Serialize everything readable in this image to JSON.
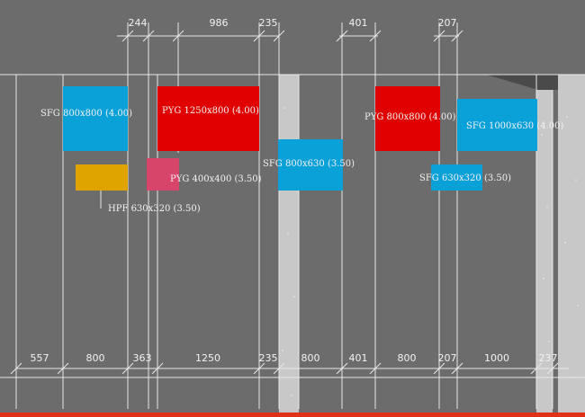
{
  "colors": {
    "background": "#6c6c6c",
    "lines": "#e8e8e8",
    "blue": "#0aa0d8",
    "red": "#e00000",
    "orange": "#e0a400",
    "pink": "#d8456a",
    "wall": "#c8c8c8",
    "bottom_edge": "#e0301a"
  },
  "top_dimensions": [
    "244",
    "986",
    "235",
    "401",
    "207"
  ],
  "bottom_dimensions": [
    "557",
    "800",
    "363",
    "1250",
    "235",
    "800",
    "401",
    "800",
    "207",
    "1000",
    "237"
  ],
  "outlets": [
    {
      "id": "sfg-800x800",
      "label": "SFG 800x800 (4.00)",
      "color": "blue"
    },
    {
      "id": "pyg-1250x800",
      "label": "PYG 1250x800 (4.00)",
      "color": "red"
    },
    {
      "id": "pyg-800x800",
      "label": "PYG 800x800 (4.00)",
      "color": "red"
    },
    {
      "id": "sfg-1000x630",
      "label": "SFG 1000x630 (4.00)",
      "color": "blue"
    },
    {
      "id": "hpf-630x320",
      "label": "HPF 630x320 (3.50)",
      "color": "orange"
    },
    {
      "id": "pyg-400x400",
      "label": "PYG 400x400 (3.50)",
      "color": "pink"
    },
    {
      "id": "sfg-800x630",
      "label": "SFG 800x630 (3.50)",
      "color": "blue"
    },
    {
      "id": "sfg-630x320",
      "label": "SFG 630x320 (3.50)",
      "color": "blue"
    }
  ]
}
